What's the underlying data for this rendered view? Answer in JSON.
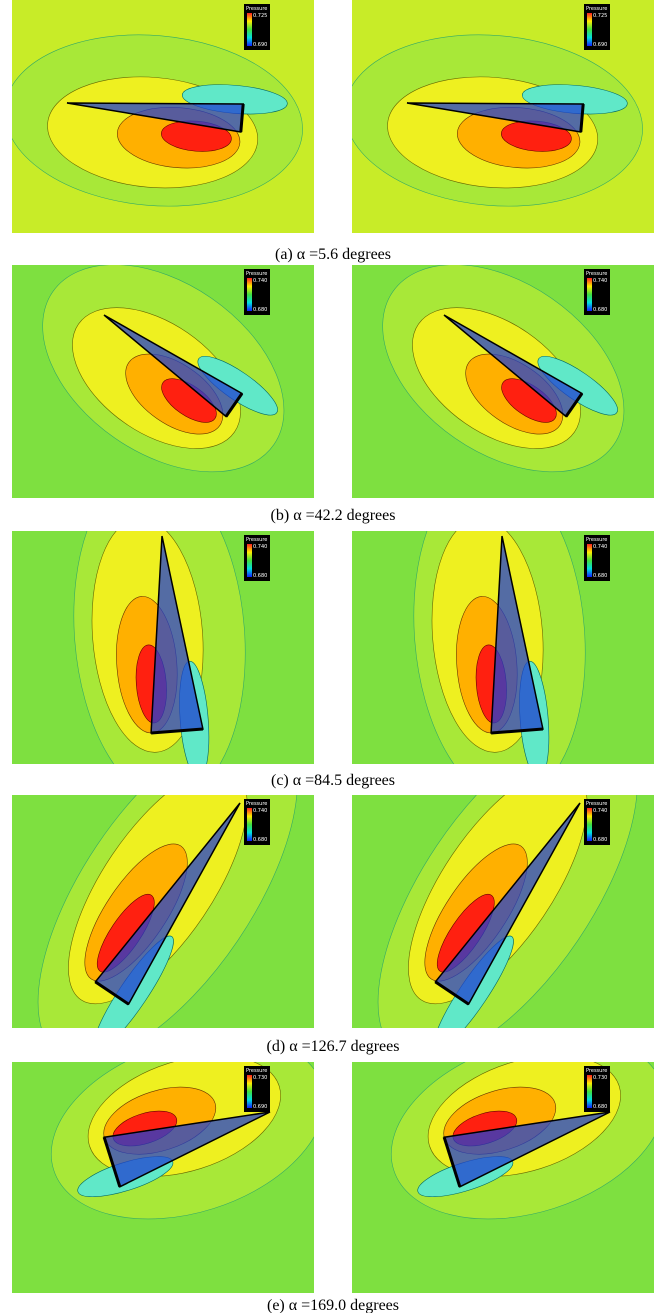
{
  "figure": {
    "panels": [
      {
        "caption": "(a)  α =5.6 degrees",
        "images": [
          {
            "legend": {
              "title": "Pressure",
              "max": "0.725",
              "min": "0.690"
            }
          },
          {
            "legend": {
              "title": "Pressure",
              "max": "0.725",
              "min": "0.690"
            }
          }
        ]
      },
      {
        "caption": "(b)  α =42.2 degrees",
        "images": [
          {
            "legend": {
              "title": "Pressure",
              "max": "0.740",
              "min": "0.680"
            }
          },
          {
            "legend": {
              "title": "Pressure",
              "max": "0.740",
              "min": "0.680"
            }
          }
        ]
      },
      {
        "caption": "(c) α =84.5 degrees",
        "images": [
          {
            "legend": {
              "title": "Pressure",
              "max": "0.740",
              "min": "0.680"
            }
          },
          {
            "legend": {
              "title": "Pressure",
              "max": "0.740",
              "min": "0.680"
            }
          }
        ]
      },
      {
        "caption": "(d) α =126.7 degrees",
        "images": [
          {
            "legend": {
              "title": "Pressure",
              "max": "0.740",
              "min": "0.680"
            }
          },
          {
            "legend": {
              "title": "Pressure",
              "max": "0.740",
              "min": "0.680"
            }
          }
        ]
      },
      {
        "caption": "(e) α =169.0 degrees",
        "images": [
          {
            "legend": {
              "title": "Pressure",
              "max": "0.730",
              "min": "0.690"
            }
          },
          {
            "legend": {
              "title": "Pressure",
              "max": "0.730",
              "min": "0.680"
            }
          }
        ]
      }
    ]
  }
}
